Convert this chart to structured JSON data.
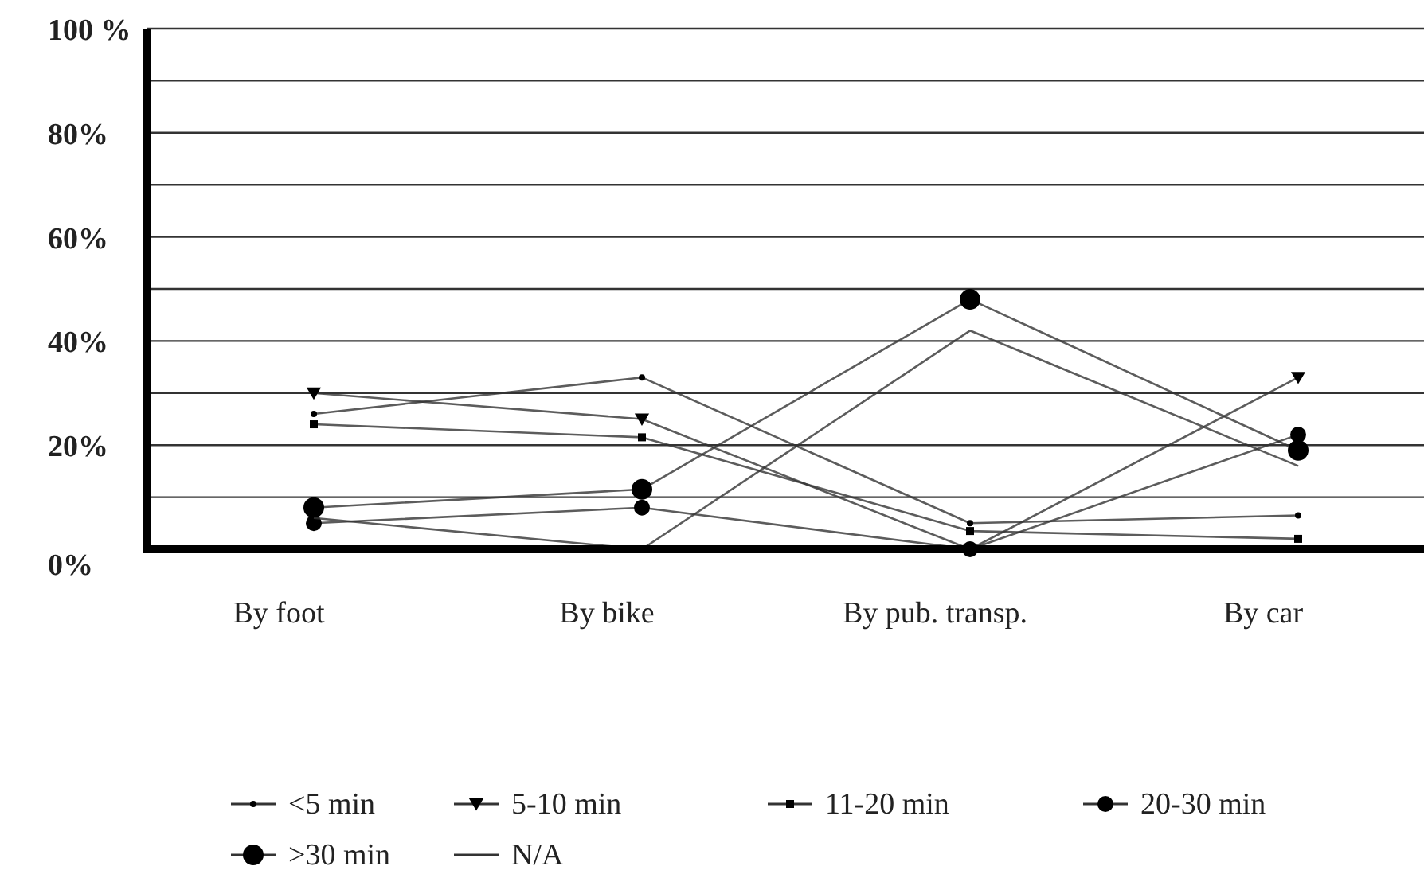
{
  "chart_data": {
    "type": "line",
    "categories": [
      "By foot",
      "By bike",
      "By pub. transp.",
      "By car"
    ],
    "ylim": [
      0,
      100
    ],
    "yticks": [
      {
        "value": 0,
        "label": "0%"
      },
      {
        "value": 10,
        "label": null
      },
      {
        "value": 20,
        "label": "20%"
      },
      {
        "value": 30,
        "label": null
      },
      {
        "value": 40,
        "label": "40%"
      },
      {
        "value": 50,
        "label": null
      },
      {
        "value": 60,
        "label": "60%"
      },
      {
        "value": 70,
        "label": null
      },
      {
        "value": 80,
        "label": "80%"
      },
      {
        "value": 90,
        "label": null
      },
      {
        "value": 100,
        "label": "100 %"
      }
    ],
    "grid": "y",
    "legend": "bottom",
    "series": [
      {
        "name": "<5 min",
        "color": "#333333",
        "marker": "circle",
        "values": [
          26,
          33,
          5,
          6.5
        ]
      },
      {
        "name": "5-10 min",
        "color": "#333333",
        "marker": "triangle",
        "values": [
          30,
          25,
          0,
          33
        ]
      },
      {
        "name": "11-20 min",
        "color": "#333333",
        "marker": "square",
        "values": [
          24,
          21.5,
          3.5,
          2
        ]
      },
      {
        "name": "20-30 min",
        "color": "#333333",
        "marker": "circle",
        "values": [
          5,
          8,
          0,
          22
        ]
      },
      {
        "name": ">30 min",
        "color": "#333333",
        "marker": "circle",
        "values": [
          8,
          11.5,
          48,
          19
        ]
      },
      {
        "name": "N/A",
        "color": "#333333",
        "marker": "none",
        "values": [
          6,
          0,
          42,
          16
        ]
      }
    ]
  }
}
